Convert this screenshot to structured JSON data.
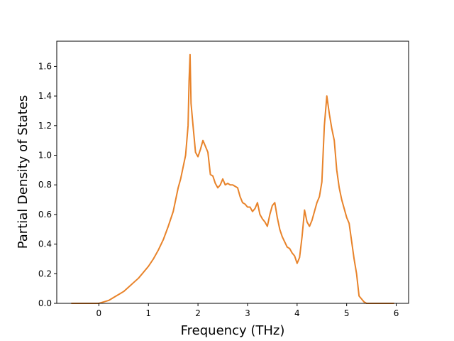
{
  "chart_data": {
    "type": "line",
    "title": "",
    "xlabel": "Frequency (THz)",
    "ylabel": "Partial Density of States",
    "xlim": [
      -0.85,
      6.25
    ],
    "ylim": [
      0.0,
      1.77
    ],
    "x_ticks": [
      0,
      1,
      2,
      3,
      4,
      5,
      6
    ],
    "y_ticks": [
      0.0,
      0.2,
      0.4,
      0.6,
      0.8,
      1.0,
      1.2,
      1.4,
      1.6
    ],
    "x_tick_labels": [
      "0",
      "1",
      "2",
      "3",
      "4",
      "5",
      "6"
    ],
    "y_tick_labels": [
      "0.0",
      "0.2",
      "0.4",
      "0.6",
      "0.8",
      "1.0",
      "1.2",
      "1.4",
      "1.6"
    ],
    "grid": false,
    "legend": "none",
    "series": [
      {
        "color": "#e8832a",
        "x": [
          -0.55,
          -0.3,
          0.0,
          0.1,
          0.2,
          0.3,
          0.4,
          0.5,
          0.6,
          0.7,
          0.8,
          0.9,
          1.0,
          1.1,
          1.2,
          1.3,
          1.4,
          1.5,
          1.55,
          1.6,
          1.65,
          1.7,
          1.75,
          1.8,
          1.82,
          1.84,
          1.86,
          1.9,
          1.95,
          2.0,
          2.05,
          2.1,
          2.15,
          2.2,
          2.25,
          2.3,
          2.35,
          2.4,
          2.45,
          2.5,
          2.55,
          2.6,
          2.65,
          2.7,
          2.8,
          2.85,
          2.9,
          2.95,
          3.0,
          3.05,
          3.1,
          3.15,
          3.2,
          3.25,
          3.3,
          3.35,
          3.4,
          3.45,
          3.5,
          3.55,
          3.6,
          3.65,
          3.7,
          3.8,
          3.85,
          3.9,
          3.95,
          4.0,
          4.05,
          4.1,
          4.15,
          4.2,
          4.25,
          4.3,
          4.35,
          4.4,
          4.45,
          4.5,
          4.55,
          4.6,
          4.65,
          4.7,
          4.75,
          4.8,
          4.85,
          4.9,
          4.95,
          5.0,
          5.05,
          5.1,
          5.15,
          5.2,
          5.25,
          5.3,
          5.35,
          5.4,
          5.6,
          5.95
        ],
        "values": [
          0.0,
          0.0,
          0.0,
          0.01,
          0.02,
          0.04,
          0.06,
          0.08,
          0.11,
          0.14,
          0.17,
          0.21,
          0.25,
          0.3,
          0.36,
          0.43,
          0.52,
          0.62,
          0.7,
          0.78,
          0.84,
          0.92,
          1.0,
          1.2,
          1.5,
          1.68,
          1.35,
          1.2,
          1.02,
          0.99,
          1.04,
          1.1,
          1.06,
          1.02,
          0.87,
          0.86,
          0.81,
          0.78,
          0.8,
          0.84,
          0.8,
          0.81,
          0.8,
          0.8,
          0.78,
          0.72,
          0.68,
          0.67,
          0.65,
          0.65,
          0.62,
          0.64,
          0.68,
          0.6,
          0.57,
          0.55,
          0.52,
          0.6,
          0.66,
          0.68,
          0.58,
          0.5,
          0.45,
          0.38,
          0.37,
          0.34,
          0.32,
          0.27,
          0.31,
          0.45,
          0.63,
          0.55,
          0.52,
          0.56,
          0.62,
          0.68,
          0.72,
          0.82,
          1.2,
          1.4,
          1.28,
          1.18,
          1.1,
          0.9,
          0.78,
          0.7,
          0.64,
          0.58,
          0.54,
          0.42,
          0.3,
          0.2,
          0.05,
          0.03,
          0.01,
          0.0,
          0.0,
          0.0
        ]
      }
    ]
  }
}
